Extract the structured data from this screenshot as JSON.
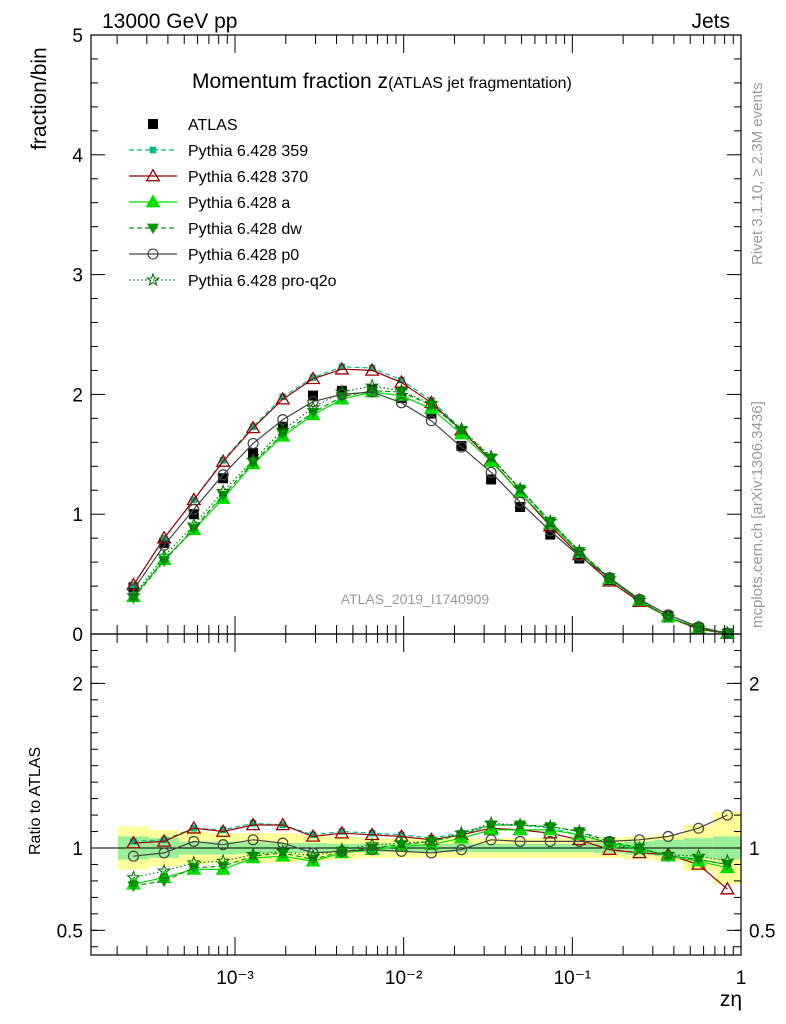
{
  "header": {
    "left_label": "13000 GeV pp",
    "right_label": "Jets",
    "analysis_id": "ATLAS_2019_I1740909",
    "side_top": "Rivet 3.1.10, ≥ 2.3M events",
    "side_bottom": "mcplots.cern.ch [arXiv:1306.3436]"
  },
  "chart_data": [
    {
      "type": "line",
      "title_main": "Momentum fraction z",
      "title_sub": "(ATLAS jet fragmentation)",
      "xlabel": "zη",
      "ylabel": "fraction/bin",
      "xscale": "log",
      "xlim": [
        0.00014,
        1.0
      ],
      "ylim": [
        0,
        5
      ],
      "yticks": [
        0,
        1,
        2,
        3,
        4,
        5
      ],
      "xtick_labels": [
        "10⁻³",
        "10⁻²",
        "10⁻¹",
        "1"
      ],
      "legend_position": "top-left",
      "x": [
        0.00025,
        0.00038,
        0.00057,
        0.00085,
        0.00128,
        0.00192,
        0.0029,
        0.0043,
        0.0065,
        0.0097,
        0.0146,
        0.022,
        0.033,
        0.049,
        0.074,
        0.11,
        0.166,
        0.25,
        0.37,
        0.56,
        0.83
      ],
      "series": [
        {
          "name": "ATLAS",
          "color": "#000000",
          "marker": "square",
          "dash": "none",
          "values": [
            0.39,
            0.76,
            1.0,
            1.3,
            1.51,
            1.73,
            1.99,
            2.03,
            2.04,
            1.97,
            1.84,
            1.57,
            1.29,
            1.06,
            0.83,
            0.63,
            0.45,
            0.28,
            0.15,
            0.05,
            0.005
          ]
        },
        {
          "name": "Pythia 6.428 359",
          "color": "#00BB88",
          "marker": "smallsquare",
          "dash": "5,3",
          "values": [
            0.41,
            0.8,
            1.12,
            1.45,
            1.73,
            1.98,
            2.14,
            2.23,
            2.22,
            2.12,
            1.95,
            1.71,
            1.47,
            1.21,
            0.93,
            0.68,
            0.46,
            0.28,
            0.14,
            0.05,
            0.005
          ]
        },
        {
          "name": "Pythia 6.428 370",
          "color": "#990000",
          "marker": "triangle-open",
          "dash": "none",
          "values": [
            0.41,
            0.8,
            1.12,
            1.44,
            1.72,
            1.96,
            2.13,
            2.21,
            2.2,
            2.1,
            1.93,
            1.7,
            1.45,
            1.18,
            0.9,
            0.66,
            0.44,
            0.27,
            0.14,
            0.04,
            0.004
          ]
        },
        {
          "name": "Pythia 6.428 a",
          "color": "#00DD00",
          "marker": "triangle",
          "dash": "none",
          "values": [
            0.31,
            0.62,
            0.87,
            1.13,
            1.42,
            1.65,
            1.83,
            1.96,
            2.02,
            1.99,
            1.88,
            1.67,
            1.44,
            1.18,
            0.92,
            0.68,
            0.46,
            0.28,
            0.14,
            0.05,
            0.004
          ]
        },
        {
          "name": "Pythia 6.428 dw",
          "color": "#009900",
          "marker": "triangle-down",
          "dash": "5,3",
          "values": [
            0.3,
            0.61,
            0.88,
            1.16,
            1.43,
            1.67,
            1.85,
            1.98,
            2.03,
            2.02,
            1.91,
            1.7,
            1.47,
            1.21,
            0.94,
            0.69,
            0.47,
            0.28,
            0.14,
            0.05,
            0.005
          ]
        },
        {
          "name": "Pythia 6.428 p0",
          "color": "#444444",
          "marker": "circle-open",
          "dash": "none",
          "values": [
            0.37,
            0.74,
            1.04,
            1.33,
            1.59,
            1.79,
            1.94,
            2.0,
            2.02,
            1.93,
            1.78,
            1.56,
            1.35,
            1.1,
            0.86,
            0.65,
            0.47,
            0.29,
            0.16,
            0.06,
            0.006
          ]
        },
        {
          "name": "Pythia 6.428 pro-q2o",
          "color": "#007700",
          "marker": "star",
          "dash": "1.5,2.5",
          "values": [
            0.32,
            0.65,
            0.91,
            1.19,
            1.45,
            1.7,
            1.89,
            2.02,
            2.07,
            2.03,
            1.92,
            1.71,
            1.48,
            1.21,
            0.94,
            0.69,
            0.46,
            0.28,
            0.14,
            0.05,
            0.005
          ]
        }
      ]
    },
    {
      "type": "line",
      "ylabel": "Ratio to ATLAS",
      "ylim": [
        0.35,
        2.3
      ],
      "yticks": [
        0.5,
        1,
        2
      ],
      "ytick_labels": [
        "0.5",
        "1",
        "2"
      ],
      "reference": 1.0,
      "band_inner_halfwidth": [
        0.07,
        0.06,
        0.04,
        0.04,
        0.035,
        0.03,
        0.03,
        0.025,
        0.025,
        0.025,
        0.025,
        0.025,
        0.025,
        0.025,
        0.025,
        0.025,
        0.03,
        0.04,
        0.05,
        0.06,
        0.07
      ],
      "band_outer_halfwidth": [
        0.13,
        0.11,
        0.1,
        0.09,
        0.09,
        0.09,
        0.08,
        0.07,
        0.06,
        0.06,
        0.06,
        0.06,
        0.06,
        0.06,
        0.06,
        0.06,
        0.06,
        0.07,
        0.08,
        0.14,
        0.22
      ],
      "series": [
        {
          "name": "Pythia 6.428 359",
          "values": [
            1.04,
            1.05,
            1.12,
            1.11,
            1.15,
            1.14,
            1.08,
            1.1,
            1.09,
            1.08,
            1.06,
            1.09,
            1.14,
            1.14,
            1.12,
            1.08,
            1.03,
            0.99,
            0.96,
            0.93,
            0.9
          ]
        },
        {
          "name": "Pythia 6.428 370",
          "values": [
            1.03,
            1.04,
            1.12,
            1.1,
            1.14,
            1.14,
            1.07,
            1.09,
            1.08,
            1.07,
            1.05,
            1.08,
            1.12,
            1.11,
            1.09,
            1.05,
            0.99,
            0.97,
            0.96,
            0.9,
            0.75
          ]
        },
        {
          "name": "Pythia 6.428 a",
          "values": [
            0.78,
            0.82,
            0.87,
            0.87,
            0.94,
            0.95,
            0.92,
            0.97,
            0.99,
            1.01,
            1.02,
            1.06,
            1.11,
            1.11,
            1.11,
            1.08,
            1.03,
            1.0,
            0.95,
            0.92,
            0.88
          ]
        },
        {
          "name": "Pythia 6.428 dw",
          "values": [
            0.77,
            0.8,
            0.88,
            0.89,
            0.95,
            0.97,
            0.93,
            0.98,
            1.0,
            1.02,
            1.04,
            1.08,
            1.14,
            1.14,
            1.13,
            1.1,
            1.04,
            1.0,
            0.95,
            0.93,
            0.9
          ]
        },
        {
          "name": "Pythia 6.428 p0",
          "values": [
            0.95,
            0.97,
            1.04,
            1.02,
            1.05,
            1.03,
            0.97,
            0.98,
            0.99,
            0.98,
            0.97,
            0.99,
            1.05,
            1.04,
            1.04,
            1.04,
            1.04,
            1.05,
            1.07,
            1.12,
            1.2
          ]
        },
        {
          "name": "Pythia 6.428 pro-q2o",
          "values": [
            0.82,
            0.86,
            0.91,
            0.92,
            0.96,
            0.98,
            0.95,
            0.99,
            1.02,
            1.03,
            1.04,
            1.09,
            1.15,
            1.14,
            1.13,
            1.1,
            1.02,
            0.99,
            0.96,
            0.95,
            0.92
          ]
        }
      ]
    }
  ]
}
